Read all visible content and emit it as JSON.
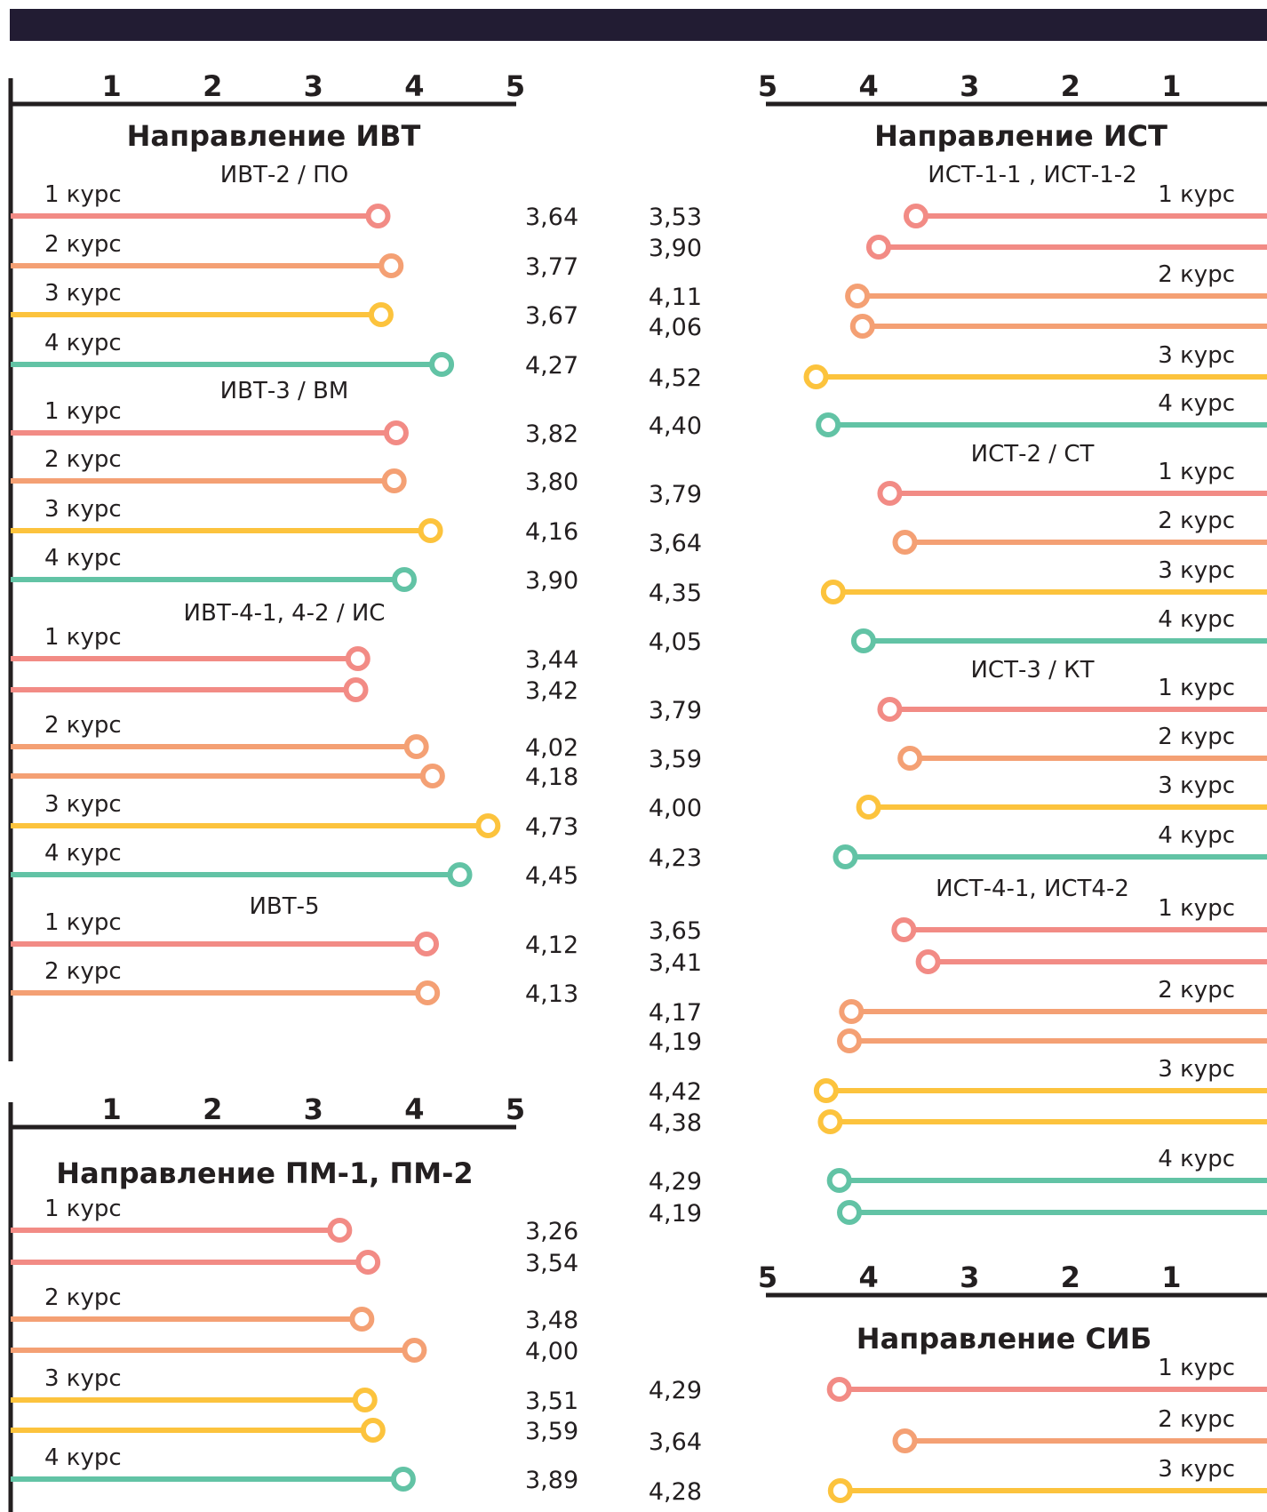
{
  "colors": {
    "c1": "#f28b85",
    "c2": "#f4a074",
    "c3": "#fcc33d",
    "c4": "#62c3a5",
    "axis": "#231f20",
    "bar": "#221c33"
  },
  "chart_data": [
    {
      "type": "lollipop",
      "title": "Направление ИВТ",
      "xlim": [
        0,
        5
      ],
      "x_direction": "left-to-right",
      "ticks": [
        "1",
        "2",
        "3",
        "4",
        "5"
      ],
      "groups": [
        {
          "name": "ИВТ-2 / ПО",
          "courses": [
            {
              "label": "1 курс",
              "year": 1,
              "values": [
                3.64
              ],
              "value_labels": [
                "3,64"
              ]
            },
            {
              "label": "2 курс",
              "year": 2,
              "values": [
                3.77
              ],
              "value_labels": [
                "3,77"
              ]
            },
            {
              "label": "3 курс",
              "year": 3,
              "values": [
                3.67
              ],
              "value_labels": [
                "3,67"
              ]
            },
            {
              "label": "4 курс",
              "year": 4,
              "values": [
                4.27
              ],
              "value_labels": [
                "4,27"
              ]
            }
          ]
        },
        {
          "name": "ИВТ-3 / ВМ",
          "courses": [
            {
              "label": "1 курс",
              "year": 1,
              "values": [
                3.82
              ],
              "value_labels": [
                "3,82"
              ]
            },
            {
              "label": "2 курс",
              "year": 2,
              "values": [
                3.8
              ],
              "value_labels": [
                "3,80"
              ]
            },
            {
              "label": "3 курс",
              "year": 3,
              "values": [
                4.16
              ],
              "value_labels": [
                "4,16"
              ]
            },
            {
              "label": "4 курс",
              "year": 4,
              "values": [
                3.9
              ],
              "value_labels": [
                "3,90"
              ]
            }
          ]
        },
        {
          "name": "ИВТ-4-1, 4-2 / ИС",
          "courses": [
            {
              "label": "1 курс",
              "year": 1,
              "values": [
                3.44,
                3.42
              ],
              "value_labels": [
                "3,44",
                "3,42"
              ]
            },
            {
              "label": "2 курс",
              "year": 2,
              "values": [
                4.02,
                4.18
              ],
              "value_labels": [
                "4,02",
                "4,18"
              ]
            },
            {
              "label": "3 курс",
              "year": 3,
              "values": [
                4.73
              ],
              "value_labels": [
                "4,73"
              ]
            },
            {
              "label": "4 курс",
              "year": 4,
              "values": [
                4.45
              ],
              "value_labels": [
                "4,45"
              ]
            }
          ]
        },
        {
          "name": "ИВТ-5",
          "courses": [
            {
              "label": "1 курс",
              "year": 1,
              "values": [
                4.12
              ],
              "value_labels": [
                "4,12"
              ]
            },
            {
              "label": "2 курс",
              "year": 2,
              "values": [
                4.13
              ],
              "value_labels": [
                "4,13"
              ]
            }
          ]
        }
      ]
    },
    {
      "type": "lollipop",
      "title": "Направление ПМ-1, ПМ-2",
      "xlim": [
        0,
        5
      ],
      "x_direction": "left-to-right",
      "ticks": [
        "1",
        "2",
        "3",
        "4",
        "5"
      ],
      "groups": [
        {
          "name": "",
          "courses": [
            {
              "label": "1 курс",
              "year": 1,
              "values": [
                3.26,
                3.54
              ],
              "value_labels": [
                "3,26",
                "3,54"
              ]
            },
            {
              "label": "2 курс",
              "year": 2,
              "values": [
                3.48,
                4.0
              ],
              "value_labels": [
                "3,48",
                "4,00"
              ]
            },
            {
              "label": "3 курс",
              "year": 3,
              "values": [
                3.51,
                3.59
              ],
              "value_labels": [
                "3,51",
                "3,59"
              ]
            },
            {
              "label": "4 курс",
              "year": 4,
              "values": [
                3.89
              ],
              "value_labels": [
                "3,89"
              ]
            }
          ]
        }
      ]
    },
    {
      "type": "lollipop",
      "title": "Направление ИСТ",
      "xlim": [
        0,
        5
      ],
      "x_direction": "right-to-left",
      "ticks": [
        "5",
        "4",
        "3",
        "2",
        "1"
      ],
      "groups": [
        {
          "name": "ИСТ-1-1 , ИСТ-1-2",
          "courses": [
            {
              "label": "1 курс",
              "year": 1,
              "values": [
                3.53,
                3.9
              ],
              "value_labels": [
                "3,53",
                "3,90"
              ]
            },
            {
              "label": "2 курс",
              "year": 2,
              "values": [
                4.11,
                4.06
              ],
              "value_labels": [
                "4,11",
                "4,06"
              ]
            },
            {
              "label": "3 курс",
              "year": 3,
              "values": [
                4.52
              ],
              "value_labels": [
                "4,52"
              ]
            },
            {
              "label": "4 курс",
              "year": 4,
              "values": [
                4.4
              ],
              "value_labels": [
                "4,40"
              ]
            }
          ]
        },
        {
          "name": "ИСТ-2 / СТ",
          "courses": [
            {
              "label": "1 курс",
              "year": 1,
              "values": [
                3.79
              ],
              "value_labels": [
                "3,79"
              ]
            },
            {
              "label": "2 курс",
              "year": 2,
              "values": [
                3.64
              ],
              "value_labels": [
                "3,64"
              ]
            },
            {
              "label": "3 курс",
              "year": 3,
              "values": [
                4.35
              ],
              "value_labels": [
                "4,35"
              ]
            },
            {
              "label": "4 курс",
              "year": 4,
              "values": [
                4.05
              ],
              "value_labels": [
                "4,05"
              ]
            }
          ]
        },
        {
          "name": "ИСТ-3 / КТ",
          "courses": [
            {
              "label": "1 курс",
              "year": 1,
              "values": [
                3.79
              ],
              "value_labels": [
                "3,79"
              ]
            },
            {
              "label": "2 курс",
              "year": 2,
              "values": [
                3.59
              ],
              "value_labels": [
                "3,59"
              ]
            },
            {
              "label": "3 курс",
              "year": 3,
              "values": [
                4.0
              ],
              "value_labels": [
                "4,00"
              ]
            },
            {
              "label": "4 курс",
              "year": 4,
              "values": [
                4.23
              ],
              "value_labels": [
                "4,23"
              ]
            }
          ]
        },
        {
          "name": "ИСТ-4-1, ИСТ4-2",
          "courses": [
            {
              "label": "1 курс",
              "year": 1,
              "values": [
                3.65,
                3.41
              ],
              "value_labels": [
                "3,65",
                "3,41"
              ]
            },
            {
              "label": "2 курс",
              "year": 2,
              "values": [
                4.17,
                4.19
              ],
              "value_labels": [
                "4,17",
                "4,19"
              ]
            },
            {
              "label": "3 курс",
              "year": 3,
              "values": [
                4.42,
                4.38
              ],
              "value_labels": [
                "4,42",
                "4,38"
              ]
            },
            {
              "label": "4 курс",
              "year": 4,
              "values": [
                4.29,
                4.19
              ],
              "value_labels": [
                "4,29",
                "4,19"
              ]
            }
          ]
        }
      ]
    },
    {
      "type": "lollipop",
      "title": "Направление СИБ",
      "xlim": [
        0,
        5
      ],
      "x_direction": "right-to-left",
      "ticks": [
        "5",
        "4",
        "3",
        "2",
        "1"
      ],
      "groups": [
        {
          "name": "",
          "courses": [
            {
              "label": "1 курс",
              "year": 1,
              "values": [
                4.29
              ],
              "value_labels": [
                "4,29"
              ]
            },
            {
              "label": "2 курс",
              "year": 2,
              "values": [
                3.64
              ],
              "value_labels": [
                "3,64"
              ]
            },
            {
              "label": "3 курс",
              "year": 3,
              "values": [
                4.28
              ],
              "value_labels": [
                "4,28"
              ]
            }
          ]
        }
      ]
    }
  ]
}
